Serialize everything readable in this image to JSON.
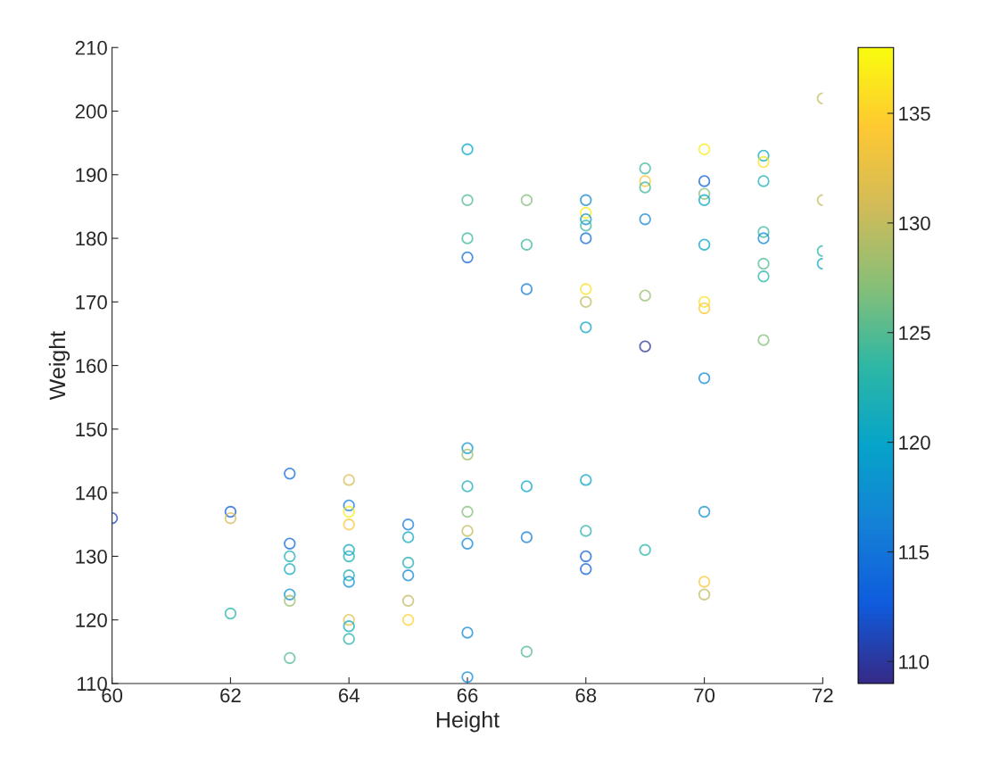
{
  "chart_data": {
    "type": "scatter",
    "xlabel": "Height",
    "ylabel": "Weight",
    "xlim": [
      60,
      72
    ],
    "xticks": [
      60,
      62,
      64,
      66,
      68,
      70,
      72
    ],
    "ylim": [
      110,
      210
    ],
    "yticks": [
      110,
      120,
      130,
      140,
      150,
      160,
      170,
      180,
      190,
      200,
      210
    ],
    "clim": [
      109,
      138
    ],
    "cticks": [
      110,
      115,
      120,
      125,
      130,
      135
    ],
    "marker": "circle",
    "grid": false,
    "x": [
      60,
      62,
      62,
      62,
      63,
      63,
      63,
      63,
      63,
      63,
      63,
      64,
      64,
      64,
      64,
      64,
      64,
      64,
      64,
      64,
      64,
      64,
      65,
      65,
      65,
      65,
      65,
      65,
      66,
      66,
      66,
      66,
      66,
      66,
      66,
      66,
      66,
      66,
      66,
      66,
      67,
      67,
      67,
      67,
      67,
      67,
      68,
      68,
      68,
      68,
      68,
      68,
      68,
      68,
      68,
      68,
      68,
      68,
      69,
      69,
      69,
      69,
      69,
      69,
      69,
      70,
      70,
      70,
      70,
      70,
      70,
      70,
      70,
      70,
      70,
      70,
      71,
      71,
      71,
      71,
      71,
      71,
      71,
      71,
      72,
      72,
      72,
      72
    ],
    "values": [
      136,
      137,
      136,
      121,
      143,
      132,
      130,
      128,
      124,
      123,
      114,
      142,
      138,
      137,
      135,
      131,
      130,
      127,
      126,
      120,
      119,
      117,
      135,
      133,
      129,
      127,
      123,
      120,
      194,
      186,
      180,
      177,
      147,
      146,
      141,
      137,
      134,
      132,
      118,
      111,
      186,
      179,
      172,
      141,
      133,
      115,
      186,
      184,
      183,
      182,
      180,
      172,
      170,
      166,
      142,
      134,
      130,
      128,
      191,
      189,
      188,
      183,
      171,
      163,
      131,
      194,
      189,
      187,
      186,
      179,
      170,
      169,
      158,
      137,
      126,
      124,
      193,
      192,
      189,
      181,
      180,
      176,
      174,
      164,
      202,
      186,
      178,
      176
    ],
    "cvalues": [
      111,
      113,
      131,
      123,
      114,
      114,
      122,
      121,
      118,
      128,
      125,
      131,
      116,
      137,
      134,
      121,
      122,
      122,
      118,
      132,
      121,
      123,
      116,
      121,
      122,
      117,
      130,
      135,
      120,
      125,
      124,
      114,
      118,
      128,
      122,
      127,
      130,
      117,
      117,
      117,
      127,
      124,
      116,
      120,
      116,
      125,
      117,
      137,
      118,
      124,
      114,
      136,
      130,
      120,
      120,
      123,
      113,
      113,
      124,
      134,
      124,
      117,
      128,
      110,
      123,
      137,
      113,
      127,
      120,
      120,
      136,
      134,
      117,
      118,
      134,
      130,
      121,
      136,
      122,
      124,
      117,
      125,
      123,
      127,
      130,
      130,
      123,
      121
    ]
  }
}
